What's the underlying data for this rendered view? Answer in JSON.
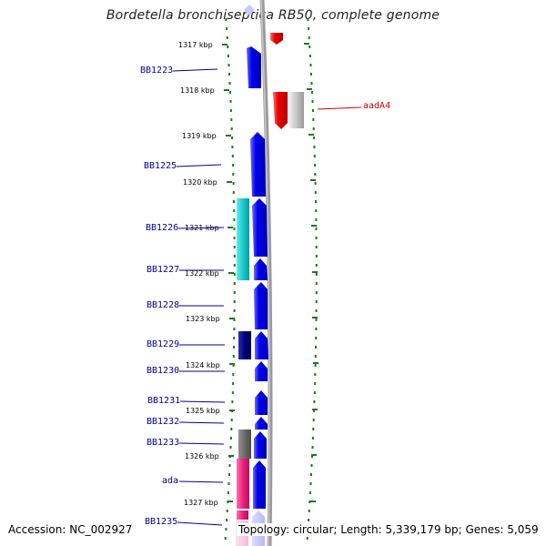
{
  "title": "Bordetella bronchiseptica RB50, complete genome",
  "footer": {
    "accession": "Accession: NC_002927",
    "topology": "Topology: circular; Length: 5,339,179 bp; Genes: 5,059"
  },
  "scale": {
    "ticks": [
      "1317 kbp",
      "1318 kbp",
      "1319 kbp",
      "1320 kbp",
      "1321 kbp",
      "1322 kbp",
      "1323 kbp",
      "1324 kbp",
      "1325 kbp",
      "1326 kbp",
      "1327 kbp"
    ]
  },
  "colors": {
    "forward_gene": "#0000ee",
    "reverse_gene": "#ee0000",
    "label_blue": "#000099",
    "label_red": "#cc0000",
    "tick_green": "#1a7a1a",
    "backbone": "#888888"
  },
  "genes": [
    {
      "name": "BB1223",
      "strand": "forward"
    },
    {
      "name": "BB1225",
      "strand": "forward"
    },
    {
      "name": "BB1226",
      "strand": "forward"
    },
    {
      "name": "BB1227",
      "strand": "forward"
    },
    {
      "name": "BB1228",
      "strand": "forward"
    },
    {
      "name": "BB1229",
      "strand": "forward"
    },
    {
      "name": "BB1230",
      "strand": "forward"
    },
    {
      "name": "BB1231",
      "strand": "forward"
    },
    {
      "name": "BB1232",
      "strand": "forward"
    },
    {
      "name": "BB1233",
      "strand": "forward"
    },
    {
      "name": "ada",
      "strand": "forward"
    },
    {
      "name": "BB1235",
      "strand": "forward"
    },
    {
      "name": "aadA4",
      "strand": "reverse"
    }
  ]
}
